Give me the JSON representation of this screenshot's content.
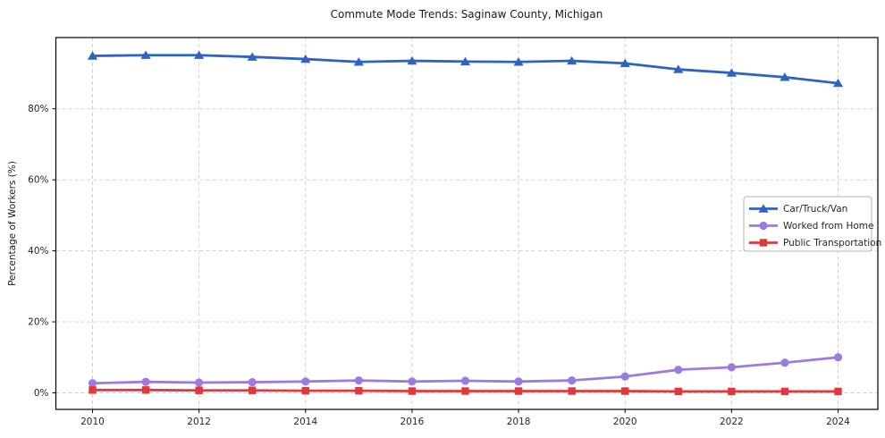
{
  "title": "Commute Mode Trends: Saginaw County, Michigan",
  "chart_data": {
    "type": "line",
    "title": "Commute Mode Trends: Saginaw County, Michigan",
    "xlabel": "",
    "ylabel": "Percentage of Workers (%)",
    "x": [
      2010,
      2011,
      2012,
      2013,
      2014,
      2015,
      2016,
      2017,
      2018,
      2019,
      2020,
      2021,
      2022,
      2023,
      2024
    ],
    "series": [
      {
        "name": "Car/Truck/Van",
        "color": "#2d64c3",
        "marker": "triangle",
        "values": [
          94.9,
          95.1,
          95.1,
          94.6,
          94.0,
          93.2,
          93.5,
          93.3,
          93.2,
          93.5,
          92.8,
          91.1,
          90.1,
          88.9,
          87.2
        ]
      },
      {
        "name": "Worked from Home",
        "color": "#9d7ae0",
        "marker": "circle",
        "values": [
          2.7,
          3.1,
          2.9,
          3.0,
          3.2,
          3.5,
          3.2,
          3.4,
          3.2,
          3.5,
          4.6,
          6.5,
          7.2,
          8.5,
          10.0
        ]
      },
      {
        "name": "Public Transportation",
        "color": "#e2383a",
        "marker": "square",
        "values": [
          0.8,
          0.8,
          0.7,
          0.7,
          0.6,
          0.6,
          0.5,
          0.5,
          0.5,
          0.5,
          0.5,
          0.4,
          0.4,
          0.4,
          0.4
        ]
      }
    ],
    "xticks": [
      2010,
      2012,
      2014,
      2016,
      2018,
      2020,
      2022,
      2024
    ],
    "yticks": [
      0,
      20,
      40,
      60,
      80
    ],
    "ytick_labels": [
      "0%",
      "20%",
      "40%",
      "60%",
      "80%"
    ],
    "ylim": [
      -4.7,
      100.1
    ],
    "grid": true,
    "legend_position": "center right"
  },
  "colors": {
    "background": "#ffffff",
    "grid": "#cccccc",
    "spine": "#000000",
    "tick_text": "#262626",
    "legend_border": "#b3b3b3",
    "legend_background": "#ffffff"
  }
}
